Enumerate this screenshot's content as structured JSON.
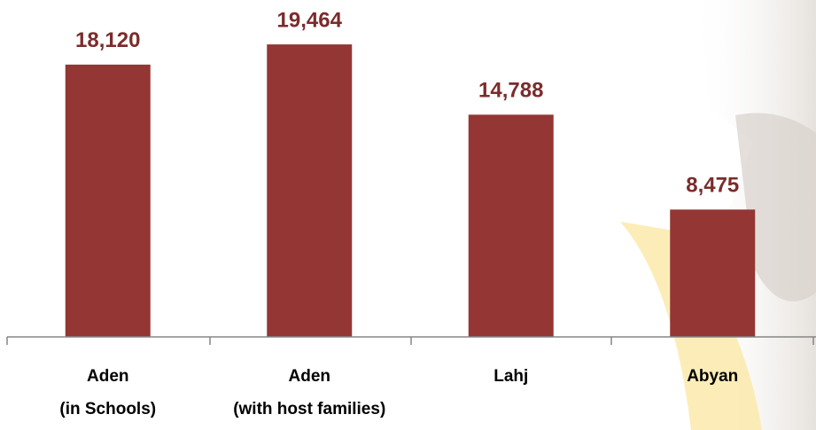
{
  "chart_data": {
    "type": "bar",
    "categories": [
      [
        "Aden",
        "(in Schools)"
      ],
      [
        "Aden",
        "(with host families)"
      ],
      [
        "Lahj"
      ],
      [
        "Abyan"
      ]
    ],
    "values": [
      18120,
      19464,
      14788,
      8475
    ],
    "value_labels": [
      "18,120",
      "19,464",
      "14,788",
      "8,475"
    ],
    "color": "#943634",
    "ylim": [
      0,
      20000
    ]
  }
}
